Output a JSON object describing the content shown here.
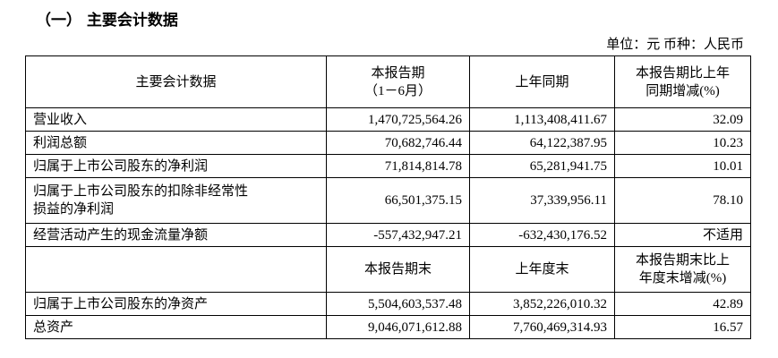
{
  "title": "（一） 主要会计数据",
  "unit": "单位：元 币种：人民币",
  "table": {
    "header": [
      "主要会计数据",
      [
        "本报告期",
        "（1－6月）"
      ],
      "上年同期",
      [
        "本报告期比上年",
        "同期增减(%)"
      ]
    ],
    "rows": [
      [
        "营业收入",
        "1,470,725,564.26",
        "1,113,408,411.67",
        "32.09"
      ],
      [
        "利润总额",
        "70,682,746.44",
        "64,122,387.95",
        "10.23"
      ],
      [
        "归属于上市公司股东的净利润",
        "71,814,814.78",
        "65,281,941.75",
        "10.01"
      ],
      [
        [
          "归属于上市公司股东的扣除非经常性",
          "损益的净利润"
        ],
        "66,501,375.15",
        "37,339,956.11",
        "78.10"
      ],
      [
        "经营活动产生的现金流量净额",
        "-557,432,947.21",
        "-632,430,176.52",
        "不适用"
      ]
    ],
    "subheader": [
      "本报告期末",
      "上年度末",
      [
        "本报告期末比上",
        "年度末增减(%)"
      ]
    ],
    "rows2": [
      [
        "归属于上市公司股东的净资产",
        "5,504,603,537.48",
        "3,852,226,010.32",
        "42.89"
      ],
      [
        "总资产",
        "9,046,071,612.88",
        "7,760,469,314.93",
        "16.57"
      ]
    ]
  }
}
